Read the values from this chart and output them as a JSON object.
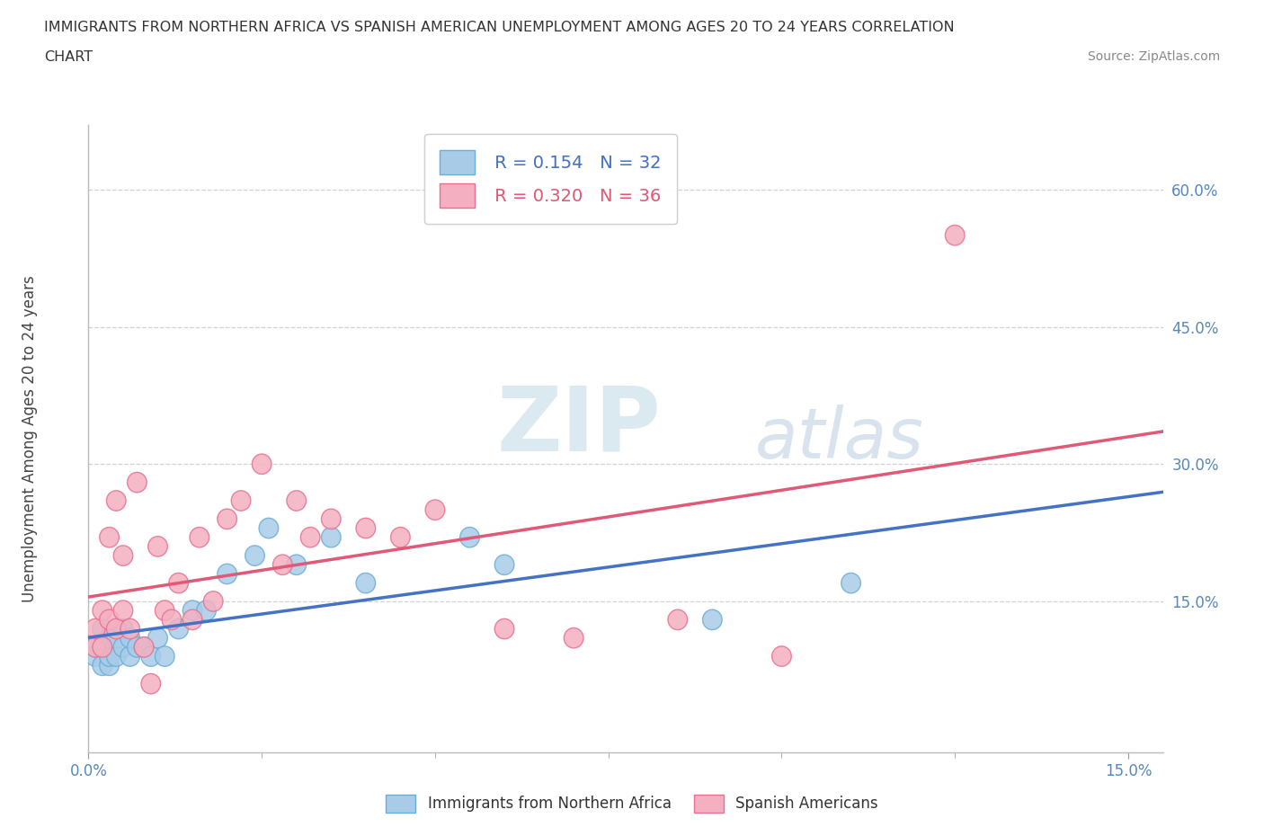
{
  "title_line1": "IMMIGRANTS FROM NORTHERN AFRICA VS SPANISH AMERICAN UNEMPLOYMENT AMONG AGES 20 TO 24 YEARS CORRELATION",
  "title_line2": "CHART",
  "source": "Source: ZipAtlas.com",
  "ylabel": "Unemployment Among Ages 20 to 24 years",
  "xlim": [
    0.0,
    0.155
  ],
  "ylim": [
    -0.015,
    0.67
  ],
  "xtick_positions": [
    0.0,
    0.15
  ],
  "xticklabels": [
    "0.0%",
    "15.0%"
  ],
  "ytick_positions": [
    0.15,
    0.3,
    0.45,
    0.6
  ],
  "ytick_labels": [
    "15.0%",
    "30.0%",
    "45.0%",
    "60.0%"
  ],
  "grid_color": "#c8c8c8",
  "background_color": "#ffffff",
  "series1_color": "#a8cce8",
  "series2_color": "#f4b0c0",
  "series1_edge": "#6aaed6",
  "series2_edge": "#e87090",
  "line1_color": "#4472c4",
  "line2_color": "#e05a78",
  "R1": 0.154,
  "N1": 32,
  "R2": 0.32,
  "N2": 36,
  "series1_x": [
    0.001,
    0.001,
    0.002,
    0.002,
    0.002,
    0.003,
    0.003,
    0.003,
    0.004,
    0.004,
    0.005,
    0.005,
    0.006,
    0.006,
    0.007,
    0.008,
    0.009,
    0.01,
    0.011,
    0.013,
    0.015,
    0.017,
    0.02,
    0.024,
    0.026,
    0.03,
    0.035,
    0.04,
    0.055,
    0.06,
    0.09,
    0.11
  ],
  "series1_y": [
    0.1,
    0.09,
    0.08,
    0.1,
    0.12,
    0.08,
    0.09,
    0.11,
    0.09,
    0.11,
    0.1,
    0.12,
    0.09,
    0.11,
    0.1,
    0.1,
    0.09,
    0.11,
    0.09,
    0.12,
    0.14,
    0.14,
    0.18,
    0.2,
    0.23,
    0.19,
    0.22,
    0.17,
    0.22,
    0.19,
    0.13,
    0.17
  ],
  "series2_x": [
    0.001,
    0.001,
    0.002,
    0.002,
    0.003,
    0.003,
    0.004,
    0.004,
    0.005,
    0.005,
    0.006,
    0.007,
    0.008,
    0.009,
    0.01,
    0.011,
    0.012,
    0.013,
    0.015,
    0.016,
    0.018,
    0.02,
    0.022,
    0.025,
    0.028,
    0.03,
    0.032,
    0.035,
    0.04,
    0.045,
    0.05,
    0.06,
    0.07,
    0.085,
    0.1,
    0.125
  ],
  "series2_y": [
    0.1,
    0.12,
    0.1,
    0.14,
    0.13,
    0.22,
    0.26,
    0.12,
    0.14,
    0.2,
    0.12,
    0.28,
    0.1,
    0.06,
    0.21,
    0.14,
    0.13,
    0.17,
    0.13,
    0.22,
    0.15,
    0.24,
    0.26,
    0.3,
    0.19,
    0.26,
    0.22,
    0.24,
    0.23,
    0.22,
    0.25,
    0.12,
    0.11,
    0.13,
    0.09,
    0.55
  ],
  "legend1_label": "Immigrants from Northern Africa",
  "legend2_label": "Spanish Americans"
}
